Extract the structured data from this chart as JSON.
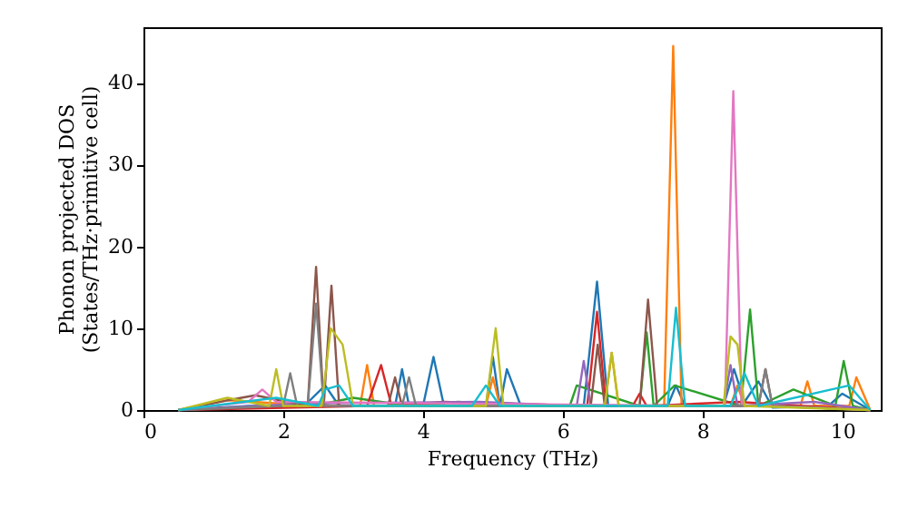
{
  "chart_data": {
    "type": "line",
    "xlabel": "Frequency (THz)",
    "ylabel": "Phonon projected DOS\n(States/THz·primitive cell)",
    "xlim": [
      0,
      10.55
    ],
    "ylim": [
      0,
      46.8
    ],
    "xticks": [
      0,
      2,
      4,
      6,
      8,
      10
    ],
    "yticks": [
      0,
      10,
      20,
      30,
      40
    ],
    "grid": false,
    "series": [
      {
        "color": "#1f77b4",
        "x": [
          0.5,
          1.5,
          2.3,
          2.6,
          2.8,
          3.6,
          3.7,
          3.8,
          4.0,
          4.15,
          4.3,
          4.9,
          5.0,
          5.1,
          5.2,
          5.4,
          6.3,
          6.49,
          6.65,
          7.5,
          7.62,
          7.75,
          8.3,
          8.45,
          8.6,
          8.8,
          9.0,
          9.8,
          10.0,
          10.4
        ],
        "values": [
          0,
          0.5,
          0.5,
          3,
          0.5,
          0.5,
          5,
          0.5,
          0.5,
          6.5,
          0.5,
          0.5,
          6.5,
          0.5,
          5,
          0.5,
          0.5,
          15.7,
          0.5,
          0.5,
          3,
          0.5,
          0.5,
          5,
          1,
          3.5,
          0.3,
          0.5,
          2,
          0
        ]
      },
      {
        "color": "#ff7f0e",
        "x": [
          0.5,
          1.2,
          2.5,
          3.1,
          3.2,
          3.3,
          4.9,
          5.0,
          5.1,
          6.6,
          6.7,
          6.8,
          7.45,
          7.58,
          7.7,
          8.4,
          8.5,
          8.6,
          9.4,
          9.5,
          9.6,
          10.1,
          10.2,
          10.4
        ],
        "values": [
          0,
          1.2,
          0.5,
          0.5,
          5.5,
          0.5,
          0.5,
          4,
          0.5,
          0.5,
          7,
          0.5,
          0.5,
          44.5,
          0.5,
          0.5,
          3,
          0.5,
          0.5,
          3.5,
          0.5,
          0.5,
          4,
          0
        ]
      },
      {
        "color": "#2ca02c",
        "x": [
          0.5,
          1.8,
          2.6,
          3.0,
          3.8,
          4.5,
          6.1,
          6.2,
          7.1,
          7.2,
          7.3,
          7.6,
          8.55,
          8.68,
          8.8,
          9.3,
          9.9,
          10.02,
          10.15,
          10.4
        ],
        "values": [
          0,
          0.5,
          0.8,
          1.5,
          0.5,
          1,
          0.5,
          3,
          0.5,
          9.5,
          0.5,
          3,
          0.5,
          12.3,
          0.5,
          2.5,
          0.5,
          6,
          0.5,
          0
        ]
      },
      {
        "color": "#d62728",
        "x": [
          0.5,
          3.2,
          3.4,
          3.55,
          4.3,
          6.35,
          6.49,
          6.62,
          7.0,
          7.1,
          7.2,
          8.5,
          10.4
        ],
        "values": [
          0,
          0.5,
          5.5,
          0.5,
          1,
          0.5,
          12,
          0.5,
          0.5,
          2,
          0.5,
          1,
          0
        ]
      },
      {
        "color": "#9467bd",
        "x": [
          0.5,
          2.3,
          4.8,
          6.2,
          6.3,
          6.4,
          8.3,
          8.4,
          8.5,
          9.6,
          10.4
        ],
        "values": [
          0,
          0.8,
          1,
          0.5,
          6,
          0.5,
          0.5,
          5.5,
          0.5,
          1,
          0
        ]
      },
      {
        "color": "#8c564b",
        "x": [
          0.5,
          1.4,
          1.6,
          2.35,
          2.47,
          2.58,
          2.69,
          2.8,
          3.5,
          3.6,
          3.7,
          6.4,
          6.5,
          6.6,
          7.1,
          7.22,
          7.35,
          8.8,
          8.9,
          9.0,
          10.4
        ],
        "values": [
          0,
          1.5,
          1.8,
          0.5,
          17.5,
          0.5,
          15.2,
          0.5,
          0.5,
          4,
          0.5,
          0.5,
          8,
          0.5,
          0.5,
          13.5,
          0.5,
          0.5,
          5,
          0.5,
          0
        ]
      },
      {
        "color": "#e377c2",
        "x": [
          0.5,
          1.5,
          1.7,
          1.9,
          8.32,
          8.44,
          8.56,
          9.0,
          10.4
        ],
        "values": [
          0,
          1,
          2.5,
          1,
          0.5,
          39,
          0.5,
          0.5,
          0
        ]
      },
      {
        "color": "#7f7f7f",
        "x": [
          0.5,
          2.0,
          2.1,
          2.2,
          2.35,
          2.47,
          2.58,
          3.7,
          3.8,
          3.9,
          8.8,
          8.9,
          9.0,
          10.4
        ],
        "values": [
          0,
          0.5,
          4.5,
          0.5,
          0.5,
          13,
          0.5,
          0.5,
          4,
          0.5,
          0.5,
          5,
          0.5,
          0
        ]
      },
      {
        "color": "#bcbd22",
        "x": [
          0.5,
          1.2,
          1.8,
          1.9,
          2.0,
          2.55,
          2.68,
          2.85,
          3.0,
          4.9,
          5.04,
          5.15,
          6.6,
          6.7,
          6.8,
          8.3,
          8.4,
          8.5,
          8.6,
          10.4
        ],
        "values": [
          0,
          1.5,
          0.5,
          5,
          0.5,
          0.5,
          10,
          8,
          0.5,
          0.5,
          10,
          0.5,
          0.5,
          7,
          0.5,
          0.5,
          9,
          8,
          0.5,
          0
        ]
      },
      {
        "color": "#17becf",
        "x": [
          0.5,
          1.9,
          2.5,
          2.6,
          2.8,
          3.0,
          4.7,
          4.9,
          5.1,
          7.5,
          7.62,
          7.75,
          8.4,
          8.6,
          8.8,
          10.1,
          10.4
        ],
        "values": [
          0,
          1.5,
          0.5,
          2.5,
          3,
          0.5,
          0.5,
          3,
          0.5,
          0.5,
          12.5,
          0.5,
          0.5,
          4.5,
          0.5,
          3,
          0
        ]
      }
    ]
  }
}
